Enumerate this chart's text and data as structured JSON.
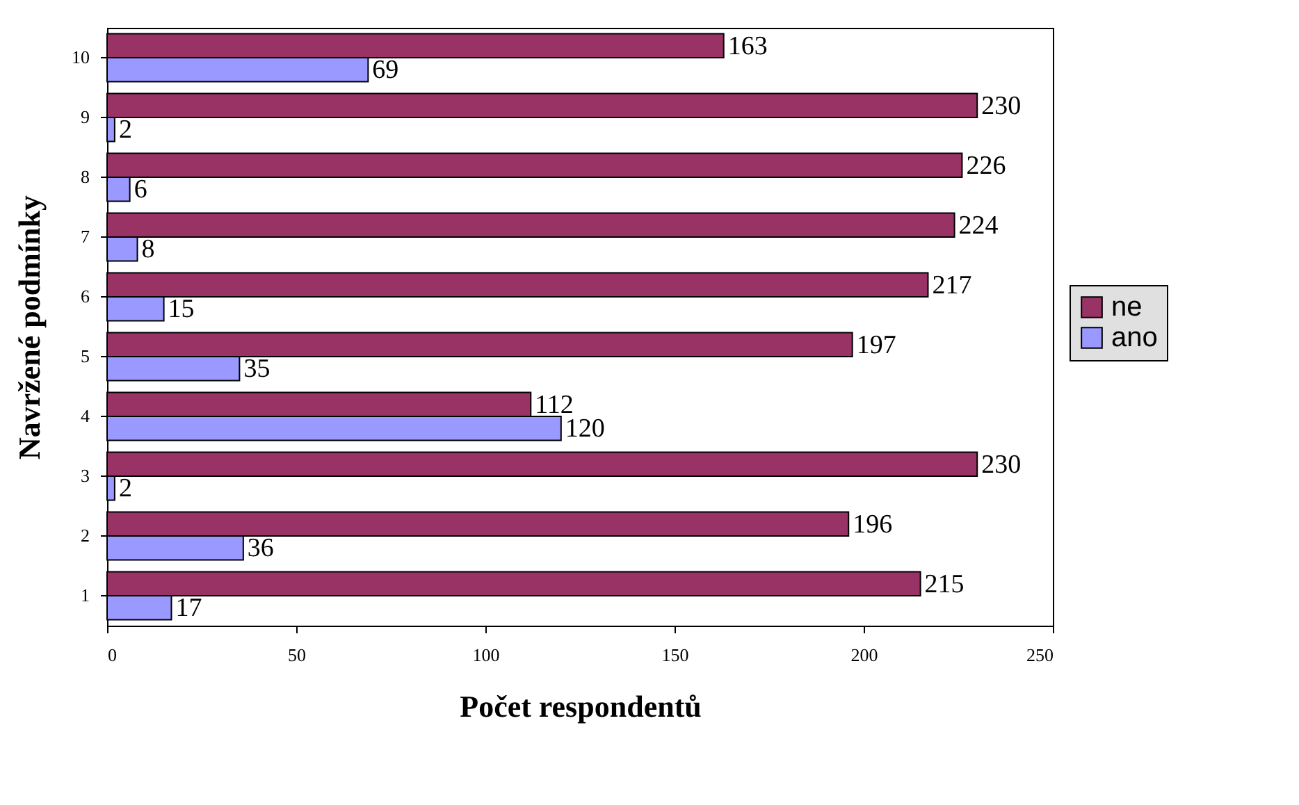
{
  "chart_data": {
    "type": "bar",
    "orientation": "horizontal",
    "xlabel": "Počet respondentů",
    "ylabel": "Navržené podmínky",
    "categories": [
      "10",
      "9",
      "8",
      "7",
      "6",
      "5",
      "4",
      "3",
      "2",
      "1"
    ],
    "series": [
      {
        "name": "ne",
        "color": "#993366",
        "values": [
          163,
          230,
          226,
          224,
          217,
          197,
          112,
          230,
          196,
          215
        ]
      },
      {
        "name": "ano",
        "color": "#9999ff",
        "values": [
          69,
          2,
          6,
          8,
          15,
          35,
          120,
          2,
          36,
          17
        ]
      }
    ],
    "xlim": [
      0,
      250
    ],
    "xticks": [
      0,
      50,
      100,
      150,
      200,
      250
    ],
    "grid": false,
    "legend": "right",
    "data_labels": true
  }
}
